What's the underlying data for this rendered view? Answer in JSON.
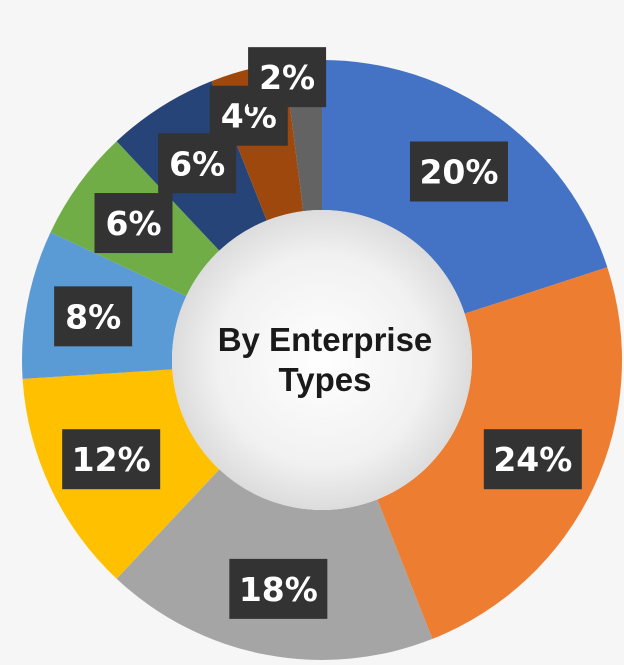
{
  "chart_data": {
    "type": "pie",
    "variant": "donut",
    "title_lines": [
      "By Enterprise",
      "Types"
    ],
    "slices": [
      {
        "value": 20,
        "label": "20%",
        "color": "#4472c4"
      },
      {
        "value": 24,
        "label": "24%",
        "color": "#ed7d31"
      },
      {
        "value": 18,
        "label": "18%",
        "color": "#a5a5a5"
      },
      {
        "value": 12,
        "label": "12%",
        "color": "#ffc000"
      },
      {
        "value": 8,
        "label": "8%",
        "color": "#5b9bd5"
      },
      {
        "value": 6,
        "label": "6%",
        "color": "#70ad47"
      },
      {
        "value": 6,
        "label": "6%",
        "color": "#264478"
      },
      {
        "value": 4,
        "label": "4%",
        "color": "#9e480e"
      },
      {
        "value": 2,
        "label": "2%",
        "color": "#636363"
      }
    ],
    "label_box_color": "#333333",
    "legend": "none"
  }
}
